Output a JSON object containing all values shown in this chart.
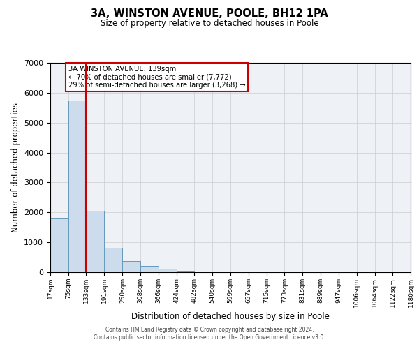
{
  "title1": "3A, WINSTON AVENUE, POOLE, BH12 1PA",
  "title2": "Size of property relative to detached houses in Poole",
  "xlabel": "Distribution of detached houses by size in Poole",
  "ylabel": "Number of detached properties",
  "bin_edges": [
    17,
    75,
    133,
    191,
    250,
    308,
    366,
    424,
    482,
    540,
    599,
    657,
    715,
    773,
    831,
    889,
    947,
    1006,
    1064,
    1122,
    1180
  ],
  "bin_labels": [
    "17sqm",
    "75sqm",
    "133sqm",
    "191sqm",
    "250sqm",
    "308sqm",
    "366sqm",
    "424sqm",
    "482sqm",
    "540sqm",
    "599sqm",
    "657sqm",
    "715sqm",
    "773sqm",
    "831sqm",
    "889sqm",
    "947sqm",
    "1006sqm",
    "1064sqm",
    "1122sqm",
    "1180sqm"
  ],
  "bar_heights": [
    1800,
    5750,
    2060,
    820,
    370,
    215,
    110,
    55,
    30,
    10,
    5,
    5,
    0,
    0,
    0,
    0,
    0,
    0,
    0,
    0
  ],
  "bar_color": "#ccdcec",
  "bar_edge_color": "#6699bb",
  "vline_x": 133,
  "vline_color": "#cc0000",
  "ylim": [
    0,
    7000
  ],
  "yticks": [
    0,
    1000,
    2000,
    3000,
    4000,
    5000,
    6000,
    7000
  ],
  "annotation_line1": "3A WINSTON AVENUE: 139sqm",
  "annotation_line2": "← 70% of detached houses are smaller (7,772)",
  "annotation_line3": "29% of semi-detached houses are larger (3,268) →",
  "annotation_box_color": "#cc0000",
  "grid_color": "#cccccc",
  "background_color": "#eef2f7",
  "footer1": "Contains HM Land Registry data © Crown copyright and database right 2024.",
  "footer2": "Contains public sector information licensed under the Open Government Licence v3.0."
}
